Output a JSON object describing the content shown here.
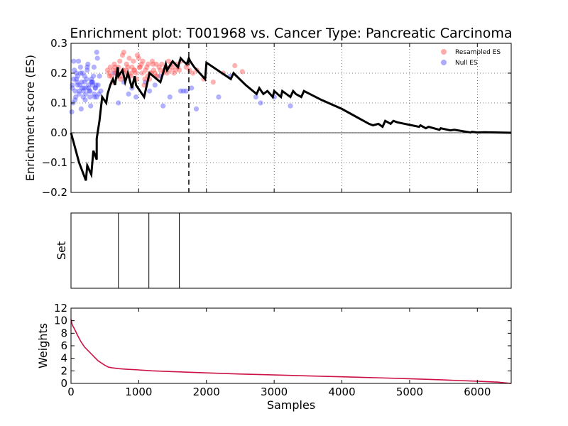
{
  "chart_data": [
    {
      "type": "line",
      "title": "Enrichment plot: T001968 vs. Cancer Type: Pancreatic Carcinoma",
      "xlabel": "",
      "ylabel": "Enrichment score (ES)",
      "xlim": [
        0,
        6500
      ],
      "ylim": [
        -0.2,
        0.3
      ],
      "yticks": [
        "−0.2",
        "−0.1",
        "0.0",
        "0.1",
        "0.2",
        "0.3"
      ],
      "grid": true,
      "grid_style": "dotted",
      "legend_position": "top-right",
      "peak_x": 1740,
      "series": [
        {
          "name": "",
          "color": "#000000",
          "x": [
            0,
            120,
            220,
            240,
            300,
            330,
            380,
            380,
            420,
            460,
            520,
            540,
            580,
            620,
            650,
            690,
            700,
            760,
            800,
            840,
            900,
            940,
            960,
            1080,
            1120,
            1160,
            1320,
            1400,
            1420,
            1500,
            1580,
            1620,
            1660,
            1710,
            1740,
            1760,
            1820,
            1900,
            1980,
            2000,
            2360,
            2400,
            2580,
            2740,
            2780,
            2840,
            2900,
            2980,
            3000,
            3100,
            3120,
            3240,
            3280,
            3320,
            3400,
            3440,
            3700,
            4000,
            4400,
            4460,
            4540,
            4600,
            4640,
            4720,
            4760,
            4820,
            5140,
            5160,
            5240,
            5280,
            5440,
            5460,
            5600,
            5660,
            5900,
            5920,
            6000,
            6100,
            6500
          ],
          "values": [
            0.0,
            -0.1,
            -0.16,
            -0.11,
            -0.14,
            -0.06,
            -0.09,
            -0.02,
            0.04,
            0.12,
            0.1,
            0.13,
            0.16,
            0.18,
            0.16,
            0.22,
            0.19,
            0.21,
            0.17,
            0.2,
            0.15,
            0.19,
            0.16,
            0.12,
            0.16,
            0.2,
            0.17,
            0.23,
            0.21,
            0.24,
            0.22,
            0.25,
            0.24,
            0.23,
            0.25,
            0.24,
            0.22,
            0.2,
            0.18,
            0.235,
            0.18,
            0.2,
            0.16,
            0.13,
            0.15,
            0.13,
            0.14,
            0.12,
            0.14,
            0.12,
            0.14,
            0.12,
            0.14,
            0.13,
            0.12,
            0.14,
            0.11,
            0.08,
            0.03,
            0.025,
            0.03,
            0.02,
            0.04,
            0.03,
            0.04,
            0.035,
            0.02,
            0.025,
            0.015,
            0.02,
            0.01,
            0.015,
            0.008,
            0.01,
            0.001,
            0.003,
            0.001,
            0.002,
            0.0
          ]
        },
        {
          "name": "Resampled ES",
          "kind": "scatter",
          "color": "#ff4444",
          "x": [
            540,
            560,
            580,
            600,
            620,
            640,
            660,
            680,
            700,
            720,
            740,
            760,
            780,
            800,
            820,
            840,
            860,
            880,
            900,
            920,
            940,
            960,
            980,
            1000,
            1020,
            1040,
            1060,
            1080,
            1100,
            1120,
            1140,
            1160,
            1180,
            1200,
            1220,
            1240,
            1260,
            1280,
            1300,
            1320,
            1340,
            1360,
            1380,
            1400,
            1420,
            1440,
            1460,
            1480,
            1500,
            1520,
            1540,
            1560,
            1580,
            1600,
            1620,
            1700,
            1720,
            1750,
            1800,
            1860,
            1960,
            2100,
            2250,
            2420,
            2530,
            570,
            610,
            650,
            690,
            730,
            770,
            810,
            850,
            890,
            930,
            970,
            1010,
            1050,
            1090,
            1130,
            1170,
            1210,
            1250
          ],
          "values": [
            0.21,
            0.2,
            0.22,
            0.19,
            0.21,
            0.23,
            0.2,
            0.21,
            0.22,
            0.24,
            0.19,
            0.26,
            0.27,
            0.2,
            0.23,
            0.22,
            0.25,
            0.19,
            0.22,
            0.24,
            0.21,
            0.2,
            0.26,
            0.25,
            0.22,
            0.23,
            0.24,
            0.16,
            0.21,
            0.22,
            0.23,
            0.18,
            0.2,
            0.24,
            0.21,
            0.2,
            0.23,
            0.19,
            0.22,
            0.21,
            0.23,
            0.2,
            0.21,
            0.22,
            0.2,
            0.24,
            0.21,
            0.23,
            0.22,
            0.2,
            0.21,
            0.23,
            0.22,
            0.21,
            0.24,
            0.22,
            0.23,
            0.21,
            0.2,
            0.21,
            0.18,
            0.17,
            0.2,
            0.225,
            0.205,
            0.19,
            0.17,
            0.22,
            0.2,
            0.18,
            0.21,
            0.21,
            0.19,
            0.2,
            0.21,
            0.18,
            0.22,
            0.2,
            0.18,
            0.19,
            0.2,
            0.23,
            0.19
          ]
        },
        {
          "name": "Null ES",
          "kind": "scatter",
          "color": "#4444ff",
          "x": [
            20,
            40,
            60,
            80,
            100,
            120,
            140,
            160,
            180,
            200,
            220,
            240,
            260,
            280,
            300,
            320,
            340,
            360,
            380,
            400,
            420,
            440,
            30,
            50,
            70,
            90,
            110,
            130,
            150,
            170,
            190,
            210,
            230,
            250,
            270,
            290,
            310,
            330,
            350,
            370,
            390,
            410,
            20,
            60,
            100,
            140,
            180,
            220,
            260,
            300,
            340,
            380,
            80,
            160,
            240,
            320,
            40,
            120,
            200,
            280,
            360,
            640,
            700,
            780,
            850,
            900,
            960,
            1100,
            1160,
            1240,
            1320,
            1360,
            1460,
            1660,
            1780,
            1850,
            2180,
            2350,
            2730,
            2800,
            3000,
            3240,
            1700,
            1620,
            10
          ],
          "values": [
            0.15,
            0.18,
            0.14,
            0.2,
            0.16,
            0.13,
            0.22,
            0.17,
            0.12,
            0.19,
            0.15,
            0.21,
            0.16,
            0.14,
            0.18,
            0.17,
            0.13,
            0.15,
            0.27,
            0.16,
            0.19,
            0.14,
            0.1,
            0.21,
            0.12,
            0.17,
            0.24,
            0.16,
            0.08,
            0.2,
            0.15,
            0.11,
            0.18,
            0.23,
            0.14,
            0.09,
            0.17,
            0.19,
            0.12,
            0.16,
            0.25,
            0.13,
            0.16,
            0.11,
            0.19,
            0.2,
            0.14,
            0.13,
            0.15,
            0.17,
            0.22,
            0.12,
            0.18,
            0.15,
            0.22,
            0.16,
            0.24,
            0.14,
            0.17,
            0.12,
            0.15,
            0.2,
            0.1,
            0.17,
            0.13,
            0.15,
            0.12,
            0.17,
            0.14,
            0.16,
            0.19,
            0.09,
            0.12,
            0.14,
            0.15,
            0.08,
            0.12,
            0.19,
            0.12,
            0.1,
            0.12,
            0.09,
            0.14,
            0.14,
            0.07
          ]
        }
      ]
    },
    {
      "type": "bar",
      "xlabel": "",
      "ylabel": "Set",
      "xlim": [
        0,
        6500
      ],
      "grid": false,
      "hit_positions": [
        700,
        1150,
        1600
      ]
    },
    {
      "type": "line",
      "xlabel": "Samples",
      "ylabel": "Weights",
      "xlim": [
        0,
        6500
      ],
      "ylim": [
        0,
        12
      ],
      "xticks": [
        "0",
        "1000",
        "2000",
        "3000",
        "4000",
        "5000",
        "6000"
      ],
      "yticks": [
        "0",
        "2",
        "4",
        "6",
        "8",
        "10",
        "12"
      ],
      "grid": false,
      "series": [
        {
          "name": "",
          "color": "#cc1144",
          "x": [
            0,
            20,
            50,
            100,
            150,
            200,
            300,
            400,
            500,
            550,
            600,
            700,
            800,
            1000,
            1200,
            1500,
            2000,
            2500,
            3000,
            3500,
            4000,
            4500,
            5000,
            5500,
            6000,
            6300,
            6500
          ],
          "values": [
            10.2,
            9.3,
            8.7,
            7.6,
            6.6,
            5.8,
            4.7,
            3.6,
            2.9,
            2.6,
            2.5,
            2.35,
            2.28,
            2.15,
            2.0,
            1.88,
            1.68,
            1.5,
            1.35,
            1.2,
            1.05,
            0.9,
            0.75,
            0.55,
            0.35,
            0.2,
            0.0
          ]
        }
      ]
    }
  ]
}
